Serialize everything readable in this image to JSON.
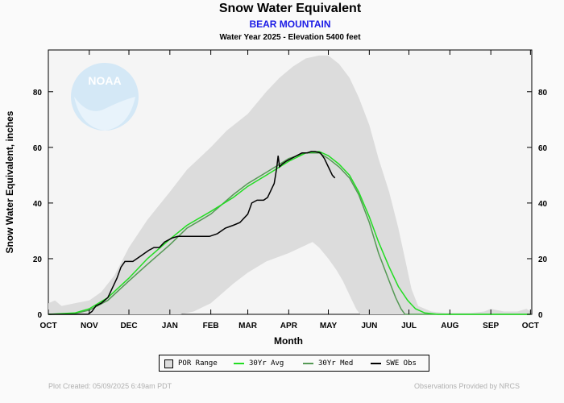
{
  "header": {
    "title": "Snow Water Equivalent",
    "station": "BEAR MOUNTAIN",
    "subtitle": "Water Year 2025 -  Elevation 5400 feet"
  },
  "footer": {
    "created": "Plot Created: 05/09/2025 6:49am PDT",
    "provider": "Observations Provided by NRCS"
  },
  "logo": {
    "text": "NOAA"
  },
  "colors": {
    "por_fill": "#dcdcdc",
    "avg": "#22dd22",
    "med": "#559955",
    "obs": "#000000",
    "station_text": "#1a1ae6"
  },
  "chart_data": {
    "type": "area",
    "title": "Snow Water Equivalent",
    "xlabel": "Month",
    "ylabel": "Snow Water Equivalent, inches",
    "x_unit": "days since Oct 1",
    "xlim": [
      0,
      366
    ],
    "ylim": [
      0,
      95
    ],
    "yticks": [
      0,
      20,
      40,
      60,
      80
    ],
    "grid": false,
    "legend_position": "bottom",
    "month_ticks": [
      {
        "label": "OCT",
        "day": 0
      },
      {
        "label": "NOV",
        "day": 31
      },
      {
        "label": "DEC",
        "day": 61
      },
      {
        "label": "JAN",
        "day": 92
      },
      {
        "label": "FEB",
        "day": 123
      },
      {
        "label": "MAR",
        "day": 151
      },
      {
        "label": "APR",
        "day": 182
      },
      {
        "label": "MAY",
        "day": 212
      },
      {
        "label": "JUN",
        "day": 243
      },
      {
        "label": "JUL",
        "day": 273
      },
      {
        "label": "AUG",
        "day": 304
      },
      {
        "label": "SEP",
        "day": 335
      },
      {
        "label": "OCT",
        "day": 365
      }
    ],
    "legend": [
      "POR Range",
      "30Yr Avg",
      "30Yr Med",
      "SWE Obs"
    ],
    "series": [
      {
        "name": "POR Range",
        "kind": "band",
        "upper": [
          [
            0,
            4
          ],
          [
            5,
            5
          ],
          [
            10,
            3
          ],
          [
            20,
            4
          ],
          [
            31,
            5
          ],
          [
            40,
            8
          ],
          [
            50,
            14
          ],
          [
            61,
            24
          ],
          [
            75,
            34
          ],
          [
            92,
            44
          ],
          [
            105,
            52
          ],
          [
            123,
            60
          ],
          [
            135,
            66
          ],
          [
            151,
            72
          ],
          [
            165,
            80
          ],
          [
            175,
            85
          ],
          [
            185,
            89
          ],
          [
            195,
            92
          ],
          [
            205,
            93
          ],
          [
            212,
            93
          ],
          [
            220,
            90
          ],
          [
            228,
            85
          ],
          [
            235,
            78
          ],
          [
            243,
            68
          ],
          [
            250,
            56
          ],
          [
            258,
            44
          ],
          [
            265,
            31
          ],
          [
            270,
            20
          ],
          [
            275,
            9
          ],
          [
            280,
            3
          ],
          [
            290,
            1
          ],
          [
            300,
            0.5
          ],
          [
            320,
            0.5
          ],
          [
            330,
            1
          ],
          [
            335,
            2
          ],
          [
            345,
            1
          ],
          [
            355,
            1
          ],
          [
            362,
            2
          ],
          [
            365,
            1
          ]
        ],
        "lower": [
          [
            0,
            0
          ],
          [
            100,
            0
          ],
          [
            110,
            1
          ],
          [
            123,
            4
          ],
          [
            140,
            11
          ],
          [
            151,
            15
          ],
          [
            165,
            19
          ],
          [
            182,
            22
          ],
          [
            200,
            26
          ],
          [
            205,
            24
          ],
          [
            212,
            20
          ],
          [
            218,
            16
          ],
          [
            223,
            12
          ],
          [
            227,
            8
          ],
          [
            230,
            5
          ],
          [
            233,
            2
          ],
          [
            236,
            0
          ],
          [
            365,
            0
          ]
        ]
      },
      {
        "name": "30Yr Avg",
        "points": [
          [
            0,
            0
          ],
          [
            20,
            0.5
          ],
          [
            31,
            2
          ],
          [
            45,
            6
          ],
          [
            61,
            13
          ],
          [
            75,
            20
          ],
          [
            92,
            27
          ],
          [
            105,
            32
          ],
          [
            123,
            37
          ],
          [
            140,
            42
          ],
          [
            151,
            46
          ],
          [
            165,
            50
          ],
          [
            182,
            55
          ],
          [
            195,
            58
          ],
          [
            205,
            58.5
          ],
          [
            212,
            57
          ],
          [
            220,
            54
          ],
          [
            228,
            50
          ],
          [
            235,
            44
          ],
          [
            243,
            35
          ],
          [
            250,
            26
          ],
          [
            258,
            17
          ],
          [
            265,
            10
          ],
          [
            272,
            5
          ],
          [
            278,
            2
          ],
          [
            285,
            0.5
          ],
          [
            295,
            0
          ],
          [
            365,
            0
          ]
        ]
      },
      {
        "name": "30Yr Med",
        "points": [
          [
            0,
            0
          ],
          [
            20,
            0.3
          ],
          [
            31,
            1.5
          ],
          [
            45,
            5
          ],
          [
            61,
            12
          ],
          [
            75,
            18
          ],
          [
            92,
            25
          ],
          [
            105,
            31
          ],
          [
            123,
            36
          ],
          [
            140,
            43
          ],
          [
            151,
            47
          ],
          [
            165,
            51
          ],
          [
            182,
            56
          ],
          [
            195,
            58
          ],
          [
            205,
            58
          ],
          [
            212,
            56
          ],
          [
            220,
            53
          ],
          [
            228,
            49
          ],
          [
            235,
            43
          ],
          [
            243,
            33
          ],
          [
            250,
            22
          ],
          [
            258,
            12
          ],
          [
            263,
            6
          ],
          [
            267,
            2
          ],
          [
            270,
            0
          ],
          [
            365,
            0
          ]
        ]
      },
      {
        "name": "SWE Obs",
        "points": [
          [
            0,
            0
          ],
          [
            30,
            0
          ],
          [
            33,
            1
          ],
          [
            36,
            3
          ],
          [
            40,
            4
          ],
          [
            45,
            6
          ],
          [
            48,
            9
          ],
          [
            52,
            13
          ],
          [
            55,
            17
          ],
          [
            58,
            19
          ],
          [
            61,
            19
          ],
          [
            64,
            19
          ],
          [
            70,
            21
          ],
          [
            76,
            23
          ],
          [
            80,
            24
          ],
          [
            84,
            24
          ],
          [
            88,
            26
          ],
          [
            92,
            27
          ],
          [
            94,
            27.5
          ],
          [
            98,
            28
          ],
          [
            104,
            28
          ],
          [
            110,
            28
          ],
          [
            116,
            28
          ],
          [
            122,
            28
          ],
          [
            128,
            29
          ],
          [
            134,
            31
          ],
          [
            140,
            32
          ],
          [
            145,
            33
          ],
          [
            151,
            36
          ],
          [
            154,
            40
          ],
          [
            158,
            41
          ],
          [
            163,
            41
          ],
          [
            166,
            42
          ],
          [
            169,
            45
          ],
          [
            171,
            47
          ],
          [
            172,
            50
          ],
          [
            173,
            53
          ],
          [
            174,
            57
          ],
          [
            175,
            53
          ],
          [
            177,
            54
          ],
          [
            180,
            55
          ],
          [
            184,
            56
          ],
          [
            188,
            57
          ],
          [
            192,
            58
          ],
          [
            196,
            58
          ],
          [
            199,
            58.5
          ],
          [
            202,
            58.5
          ],
          [
            206,
            58
          ],
          [
            209,
            56
          ],
          [
            212,
            53
          ],
          [
            215,
            50
          ],
          [
            217,
            49
          ]
        ]
      }
    ]
  }
}
